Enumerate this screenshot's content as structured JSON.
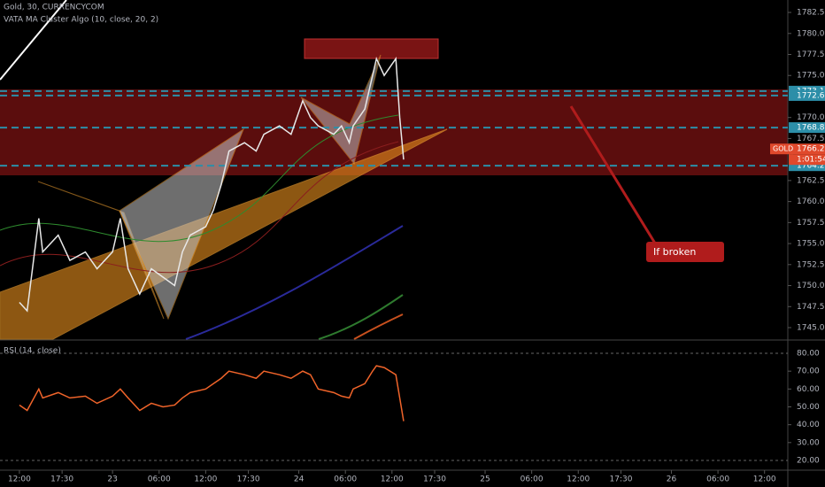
{
  "header": {
    "symbol": "Gold, 30, CURRENCYCOM",
    "indicator": "VATA MA Cluster Algo (10, close, 20, 2)"
  },
  "annotation": "If broken",
  "chart_data": [
    {
      "type": "line",
      "color": "#e8e8e8",
      "x": [
        0,
        2,
        5,
        6,
        10,
        13,
        17,
        20,
        24,
        26,
        28,
        31,
        34,
        37,
        40,
        42,
        44,
        48,
        50,
        52,
        54,
        58,
        61,
        63,
        67,
        70,
        73,
        75,
        77,
        81,
        83,
        85,
        86,
        89,
        91,
        92,
        94,
        97,
        98,
        99
      ],
      "series": [
        {
          "name": "GOLD",
          "color": "#e8e8e8",
          "values": [
            1748,
            1747,
            1758,
            1754,
            1756,
            1753,
            1754,
            1752,
            1754,
            1758,
            1752,
            1749,
            1752,
            1751,
            1750,
            1754,
            1756,
            1757,
            1759,
            1762,
            1766,
            1767,
            1766,
            1768,
            1769,
            1768,
            1772,
            1770,
            1769,
            1768,
            1769,
            1767,
            1769,
            1771,
            1775,
            1777,
            1775,
            1777,
            1770,
            1765
          ]
        }
      ],
      "xlim": [
        -5,
        198
      ],
      "xticks": [
        {
          "value": 0,
          "label": "12:00"
        },
        {
          "value": 11,
          "label": "17:30"
        },
        {
          "value": 24,
          "label": "23"
        },
        {
          "value": 36,
          "label": "06:00"
        },
        {
          "value": 48,
          "label": "12:00"
        },
        {
          "value": 59,
          "label": "17:30"
        },
        {
          "value": 72,
          "label": "24"
        },
        {
          "value": 84,
          "label": "06:00"
        },
        {
          "value": 96,
          "label": "12:00"
        },
        {
          "value": 107,
          "label": "17:30"
        },
        {
          "value": 120,
          "label": "25"
        },
        {
          "value": 132,
          "label": "06:00"
        },
        {
          "value": 144,
          "label": "12:00"
        },
        {
          "value": 155,
          "label": "17:30"
        },
        {
          "value": 168,
          "label": "26"
        },
        {
          "value": 180,
          "label": "06:00"
        },
        {
          "value": 192,
          "label": "12:00"
        }
      ],
      "ylim": [
        1743.63,
        1783.98
      ],
      "yticks": [
        {
          "value": 1782.5,
          "label": "1782.50"
        },
        {
          "value": 1780,
          "label": "1780.00"
        },
        {
          "value": 1777.5,
          "label": "1777.50"
        },
        {
          "value": 1775,
          "label": "1775.00"
        },
        {
          "value": 1770,
          "label": "1770.00"
        },
        {
          "value": 1767.5,
          "label": "1767.50"
        },
        {
          "value": 1762.5,
          "label": "1762.50"
        },
        {
          "value": 1760,
          "label": "1760.00"
        },
        {
          "value": 1757.5,
          "label": "1757.50"
        },
        {
          "value": 1755,
          "label": "1755.00"
        },
        {
          "value": 1752.5,
          "label": "1752.50"
        },
        {
          "value": 1750,
          "label": "1750.00"
        },
        {
          "value": 1747.5,
          "label": "1747.50"
        },
        {
          "value": 1745,
          "label": "1745.00"
        }
      ],
      "levels": [
        1773.14,
        1772.61,
        {
          "value": 1768.8,
          "label": "1768.80"
        },
        1764.26
      ],
      "level_color": "#2c8ea8",
      "last_price": 1766.26,
      "last_tag": "GOLD",
      "countdown": "1:01:54",
      "last_color": "#e0492c"
    },
    {
      "type": "line",
      "title": "RSI (14, close)",
      "x": [
        0,
        2,
        5,
        6,
        10,
        13,
        17,
        20,
        24,
        26,
        28,
        31,
        34,
        37,
        40,
        42,
        44,
        48,
        50,
        52,
        54,
        58,
        61,
        63,
        67,
        70,
        73,
        75,
        77,
        81,
        83,
        85,
        86,
        89,
        91,
        92,
        94,
        97,
        98,
        99
      ],
      "series": [
        {
          "name": "RSI",
          "color": "#f0642a",
          "values": [
            51,
            48,
            60,
            55,
            58,
            55,
            56,
            52,
            56,
            60,
            55,
            48,
            52,
            50,
            51,
            55,
            58,
            60,
            63,
            66,
            70,
            68,
            66,
            70,
            68,
            66,
            70,
            68,
            60,
            58,
            56,
            55,
            60,
            63,
            70,
            73,
            72,
            68,
            55,
            42
          ]
        }
      ],
      "xlim": [
        -5,
        198
      ],
      "ylim": [
        15.04,
        85.45
      ],
      "yticks": [
        {
          "value": 80,
          "label": "80.00"
        },
        {
          "value": 70,
          "label": "70.00"
        },
        {
          "value": 60,
          "label": "60.00"
        },
        {
          "value": 50,
          "label": "50.00"
        },
        {
          "value": 40,
          "label": "40.00"
        },
        {
          "value": 30,
          "label": "30.00"
        },
        {
          "value": 20,
          "label": "20.00"
        }
      ]
    }
  ]
}
